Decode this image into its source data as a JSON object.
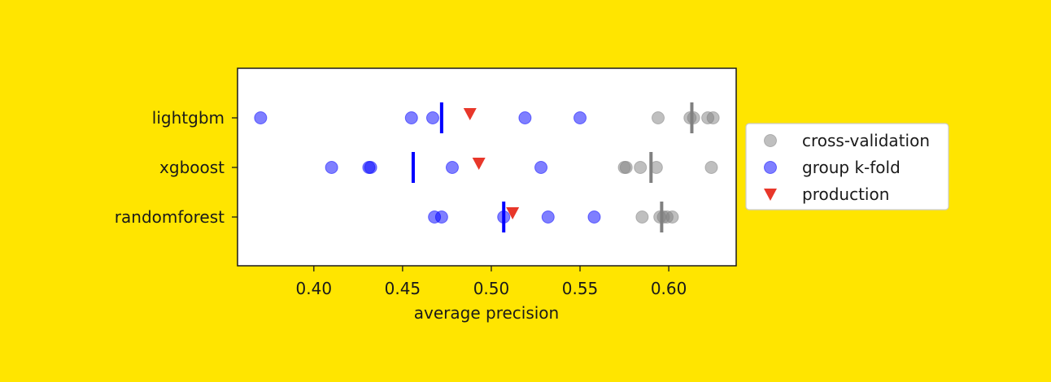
{
  "chart_data": {
    "type": "scatter",
    "orientation": "horizontal",
    "title": "",
    "xlabel": "average precision",
    "ylabel": "",
    "xlim": [
      0.357,
      0.638
    ],
    "xticks": [
      0.4,
      0.45,
      0.5,
      0.55,
      0.6
    ],
    "xtick_labels": [
      "0.40",
      "0.45",
      "0.50",
      "0.55",
      "0.60"
    ],
    "categories": [
      "lightgbm",
      "xgboost",
      "randomforest"
    ],
    "grid": false,
    "legend_position": "outside-right",
    "series": [
      {
        "name": "cross-validation",
        "color": "#808080",
        "marker": "circle",
        "points": {
          "lightgbm": [
            0.594,
            0.612,
            0.614,
            0.622,
            0.625
          ],
          "xgboost": [
            0.575,
            0.576,
            0.584,
            0.593,
            0.624
          ],
          "randomforest": [
            0.585,
            0.595,
            0.597,
            0.599,
            0.602
          ]
        },
        "means": {
          "lightgbm": 0.613,
          "xgboost": 0.59,
          "randomforest": 0.596
        }
      },
      {
        "name": "group k-fold",
        "color": "#0000FF",
        "marker": "circle",
        "points": {
          "lightgbm": [
            0.37,
            0.455,
            0.467,
            0.519,
            0.55
          ],
          "xgboost": [
            0.41,
            0.431,
            0.432,
            0.478,
            0.528
          ],
          "randomforest": [
            0.468,
            0.472,
            0.507,
            0.532,
            0.558
          ]
        },
        "means": {
          "lightgbm": 0.472,
          "xgboost": 0.456,
          "randomforest": 0.507
        }
      },
      {
        "name": "production",
        "color": "#E8372A",
        "marker": "triangle-down",
        "points": {
          "lightgbm": [
            0.488
          ],
          "xgboost": [
            0.493
          ],
          "randomforest": [
            0.512
          ]
        }
      }
    ]
  }
}
